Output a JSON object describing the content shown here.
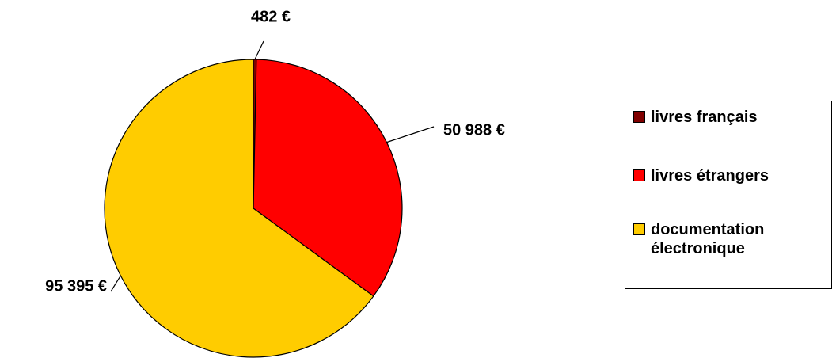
{
  "chart_data": {
    "type": "pie",
    "categories": [
      "livres français",
      "livres étrangers",
      "documentation électronique"
    ],
    "values": [
      482,
      50988,
      95395
    ],
    "value_labels": [
      "482 €",
      "50 988 €",
      "95 395 €"
    ],
    "colors": [
      "#800000",
      "#ff0000",
      "#ffcc00"
    ],
    "legend": "right"
  }
}
